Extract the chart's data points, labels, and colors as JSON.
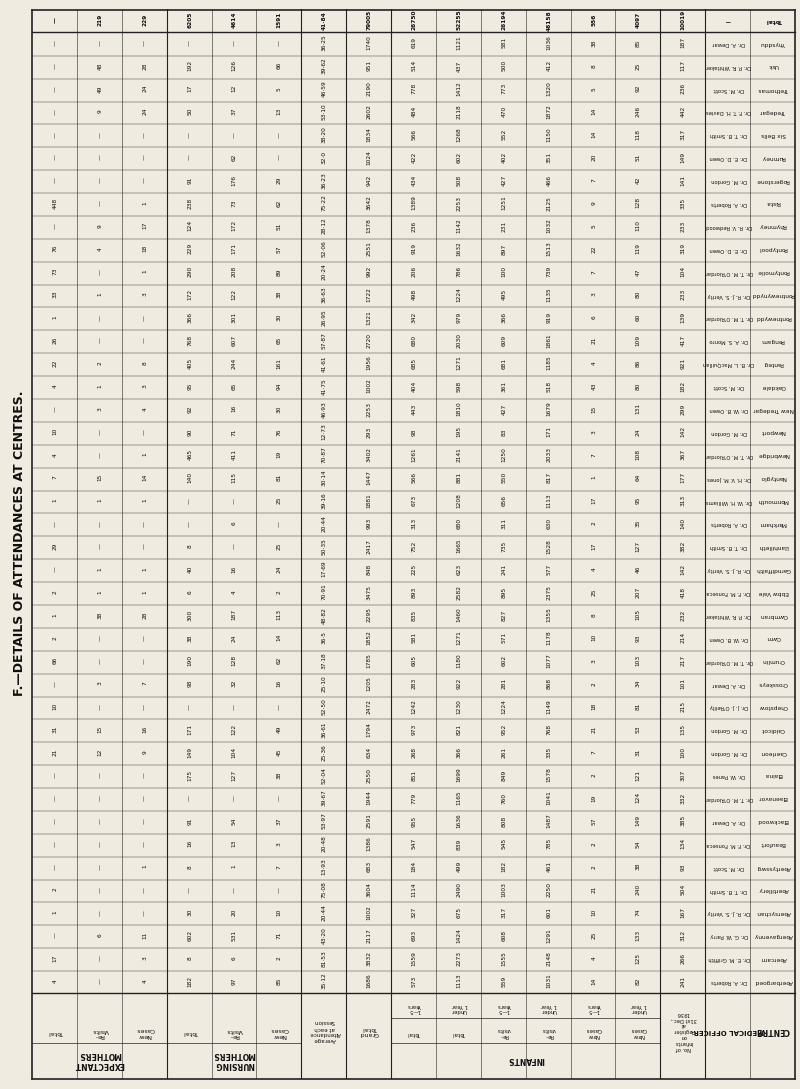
{
  "title": "F.—DETAILS OF ATTENDANCES AT CENTRES.",
  "bg_color": "#f0ebe0",
  "text_color": "#111111",
  "centres": [
    "Aberbargoed",
    "Abercarn",
    "Abergavenny",
    "Abersychan",
    "Abertillery",
    "Abertysswg",
    "Beaufort",
    "Blackwood",
    "Blaenavor",
    "Blaina",
    "Caerleon",
    "Caldicot",
    "Chepstow",
    "Crosskeys",
    "Crumlin",
    "Cwm",
    "Cwmbran",
    "Ebbw Vale",
    "Garndiffaith",
    "Llanhilleth",
    "Markham",
    "Monmouth",
    "Nantyglo",
    "Newbridge",
    "Newport",
    "New Tredegar",
    "Oakdale",
    "Panteg",
    "Pengam",
    "Pontnewydd",
    "Pontnewynydd",
    "Pontymoile",
    "Pontypool",
    "Rhymney",
    "Rista",
    "Rogerstone",
    "Rumney",
    "Six Bells",
    "Tredegar",
    "Trethomas",
    "Usk",
    "Ynysddu",
    "Total"
  ],
  "medical_officers": [
    "Dr. A. Roberts",
    "Dr. E. M. Griffith",
    "Dr. G. W. Parry",
    "Dr. R. J. S. Verity",
    "Dr. T. B. Smith",
    "Dr. M. Scott",
    "Dr. F. M. Fonseca",
    "Dr. A. Dewar",
    "Dr. T. M. O'Riordan",
    "Dr. W. Panes",
    "Dr. M. Gordon",
    "Dr. M. Gordon",
    "Dr. J. J. O'Reilly",
    "Dr. A. Dewar",
    "Dr. T. M. O'Riordan",
    "Dr. W. B. Owen",
    "Dr. P. R. Whitaker",
    "Dr. F. M. Fonseca",
    "Dr. R. J. S. Verity",
    "Dr. T. B. Smith",
    "Dr. A. Roberts",
    "Dr. W. H. Williams",
    "Dr. H. V. M. Jones",
    "Dr. T. M. O'Riordan",
    "Dr. M. Gordon",
    "Dr. W. B. Owen",
    "Dr. M. Scott",
    "Dr. B. L. MacQuillan",
    "Dr. A. S. Monro",
    "Dr. T. M. O'Riordan",
    "Dr. R. J. S. Verity",
    "Dr. T. M. O'Riordan",
    "Dr. E. D. Owen",
    "Dr. R. V. Redwood",
    "Dr. A. Roberts",
    "Dr. M. Gordon",
    "Dr. E. D. Owen",
    "Dr. T. B. Smith",
    "Dr. F. T. H. Davies",
    "Dr. M. Scott",
    "Dr. P. R. Whitaker",
    "Dr. A. Dewar",
    ""
  ],
  "no_infants_register": [
    "241",
    "266",
    "312",
    "167",
    "504",
    "93",
    "134",
    "385",
    "332",
    "307",
    "100",
    "135",
    "215",
    "101",
    "217",
    "214",
    "232",
    "418",
    "142",
    "382",
    "140",
    "313",
    "177",
    "367",
    "142",
    "299",
    "182",
    "921",
    "417",
    "139",
    "233",
    "104",
    "319",
    "233",
    "335",
    "141",
    "149",
    "317",
    "442",
    "236",
    "117",
    "187",
    "10019"
  ],
  "nc_u1": [
    "82",
    "125",
    "133",
    "74",
    "240",
    "38",
    "54",
    "149",
    "124",
    "121",
    "31",
    "53",
    "81",
    "34",
    "103",
    "93",
    "105",
    "207",
    "46",
    "127",
    "35",
    "95",
    "64",
    "108",
    "24",
    "131",
    "80",
    "86",
    "109",
    "60",
    "80",
    "47",
    "119",
    "110",
    "128",
    "42",
    "51",
    "118",
    "246",
    "92",
    "25",
    "85",
    "4097"
  ],
  "nc_15": [
    "14",
    "4",
    "25",
    "10",
    "21",
    "2",
    "2",
    "57",
    "19",
    "2",
    "7",
    "21",
    "18",
    "2",
    "3",
    "10",
    "8",
    "25",
    "4",
    "17",
    "2",
    "17",
    "1",
    "7",
    "3",
    "15",
    "43",
    "4",
    "21",
    "6",
    "3",
    "7",
    "22",
    "5",
    "9",
    "7",
    "20",
    "14",
    "14",
    "5",
    "8",
    "38",
    "556"
  ],
  "rv_u1": [
    "1031",
    "2148",
    "1291",
    "601",
    "2250",
    "461",
    "785",
    "1487",
    "1041",
    "1578",
    "335",
    "768",
    "1149",
    "868",
    "1077",
    "1178",
    "1355",
    "2375",
    "577",
    "1528",
    "630",
    "1113",
    "817",
    "2033",
    "171",
    "1679",
    "518",
    "1185",
    "1861",
    "919",
    "1135",
    "739",
    "1513",
    "1032",
    "2125",
    "466",
    "351",
    "1150",
    "1872",
    "1320",
    "412",
    "1036",
    "48158"
  ],
  "rv_15": [
    "559",
    "1555",
    "608",
    "317",
    "1003",
    "182",
    "545",
    "808",
    "760",
    "849",
    "261",
    "952",
    "1224",
    "281",
    "602",
    "571",
    "827",
    "895",
    "241",
    "735",
    "311",
    "656",
    "550",
    "1250",
    "83",
    "427",
    "361",
    "681",
    "609",
    "366",
    "495",
    "100",
    "897",
    "231",
    "1251",
    "427",
    "402",
    "552",
    "470",
    "773",
    "500",
    "581",
    "26194"
  ],
  "tot_u1": [
    "1113",
    "2273",
    "1424",
    "675",
    "2490",
    "499",
    "839",
    "1636",
    "1165",
    "1699",
    "366",
    "821",
    "1230",
    "922",
    "1180",
    "1271",
    "1460",
    "2582",
    "623",
    "1665",
    "680",
    "1208",
    "881",
    "2141",
    "195",
    "1810",
    "598",
    "1271",
    "2030",
    "979",
    "1224",
    "786",
    "1632",
    "1142",
    "2253",
    "508",
    "602",
    "1268",
    "2118",
    "1412",
    "437",
    "1121",
    "52255"
  ],
  "tot_15": [
    "573",
    "1559",
    "693",
    "327",
    "1114",
    "184",
    "547",
    "955",
    "779",
    "851",
    "268",
    "973",
    "1242",
    "283",
    "605",
    "581",
    "835",
    "893",
    "225",
    "752",
    "313",
    "673",
    "566",
    "1261",
    "98",
    "443",
    "404",
    "685",
    "680",
    "342",
    "498",
    "206",
    "919",
    "236",
    "1389",
    "434",
    "422",
    "566",
    "484",
    "778",
    "514",
    "619",
    "26750"
  ],
  "grand_total": [
    "1686",
    "3832",
    "2117",
    "1002",
    "3604",
    "683",
    "1386",
    "2591",
    "1944",
    "2550",
    "634",
    "1794",
    "2472",
    "1205",
    "1785",
    "1852",
    "2295",
    "3475",
    "848",
    "2417",
    "993",
    "1881",
    "1447",
    "3402",
    "293",
    "2253",
    "1002",
    "1956",
    "2720",
    "1321",
    "1722",
    "992",
    "2551",
    "1378",
    "3642",
    "942",
    "1024",
    "1834",
    "2602",
    "2190",
    "951",
    "1740",
    "79005"
  ],
  "avg_attend": [
    "35·12",
    "81·53",
    "43·20",
    "20·44",
    "75·08",
    "13·93",
    "20·48",
    "53·97",
    "39·67",
    "52·04",
    "25·36",
    "36·61",
    "52·50",
    "25·10",
    "37·18",
    "36·5",
    "48·82",
    "70·91",
    "17·69",
    "50·35",
    "20·44",
    "39·16",
    "30·14",
    "70·87",
    "12·73",
    "46·93",
    "41·75",
    "41·61",
    "57·87",
    "26·95",
    "36·63",
    "20·24",
    "52·06",
    "28·12",
    "75·22",
    "36·23",
    "32·0",
    "38·20",
    "53·10",
    "46·59",
    "39·62",
    "36·25",
    "41·84"
  ],
  "nurs_nc": [
    "85",
    "2",
    "71",
    "10",
    "",
    "7",
    "3",
    "37",
    "",
    "38",
    "45",
    "49",
    "",
    "16",
    "62",
    "14",
    "113",
    "2",
    "24",
    "25",
    "",
    "25",
    "81",
    "19",
    "76",
    "30",
    "94",
    "161",
    "65",
    "30",
    "38",
    "89",
    "57",
    "51",
    "62",
    "29",
    "",
    "",
    "13",
    "5",
    "66",
    "",
    "1591"
  ],
  "nurs_rv": [
    "97",
    "6",
    "531",
    "20",
    "",
    "1",
    "13",
    "54",
    "",
    "127",
    "104",
    "122",
    "",
    "32",
    "128",
    "24",
    "187",
    "4",
    "16",
    "",
    "6",
    "",
    "115",
    "411",
    "71",
    "16",
    "65",
    "244",
    "607",
    "301",
    "122",
    "208",
    "171",
    "172",
    "73",
    "176",
    "62",
    "",
    "37",
    "12",
    "126",
    "",
    "4614"
  ],
  "nurs_tot": [
    "182",
    "8",
    "602",
    "30",
    "",
    "8",
    "16",
    "91",
    "",
    "175",
    "149",
    "171",
    "",
    "98",
    "190",
    "38",
    "300",
    "6",
    "40",
    "8",
    "",
    "",
    "140",
    "465",
    "90",
    "92",
    "95",
    "405",
    "768",
    "366",
    "172",
    "290",
    "229",
    "124",
    "238",
    "91",
    "",
    "",
    "50",
    "17",
    "192",
    "",
    "6205"
  ],
  "exp_nc": [
    "4",
    "3",
    "11",
    "",
    "",
    "1",
    "",
    "",
    "",
    "",
    "9",
    "16",
    "",
    "7",
    "",
    "",
    "28",
    "1",
    "1",
    "",
    "",
    "1",
    "14",
    "1",
    "",
    "4",
    "3",
    "8",
    "",
    "",
    "3",
    "1",
    "18",
    "17",
    "1",
    "",
    "",
    "",
    "24",
    "24",
    "28",
    "",
    "229"
  ],
  "exp_rv": [
    "",
    "",
    "6",
    "",
    "",
    "",
    "",
    "",
    "",
    "",
    "12",
    "15",
    "",
    "3",
    "",
    "",
    "38",
    "1",
    "1",
    "",
    "",
    "1",
    "15",
    "",
    "",
    "3",
    "1",
    "2",
    "",
    "",
    "1",
    "",
    "4",
    "9",
    "",
    "",
    "",
    "",
    "9",
    "49",
    "48",
    "",
    "219"
  ],
  "exp_tot": [
    "4",
    "17",
    "",
    "1",
    "2",
    "",
    "",
    "",
    "",
    "",
    "21",
    "31",
    "10",
    "",
    "66",
    "2",
    "1",
    "2",
    "",
    "29",
    "",
    "1",
    "7",
    "4",
    "10",
    "",
    "4",
    "22",
    "26",
    "1",
    "33",
    "73",
    "76",
    "",
    "448",
    "",
    "",
    "",
    "",
    "",
    "",
    "",
    ""
  ]
}
